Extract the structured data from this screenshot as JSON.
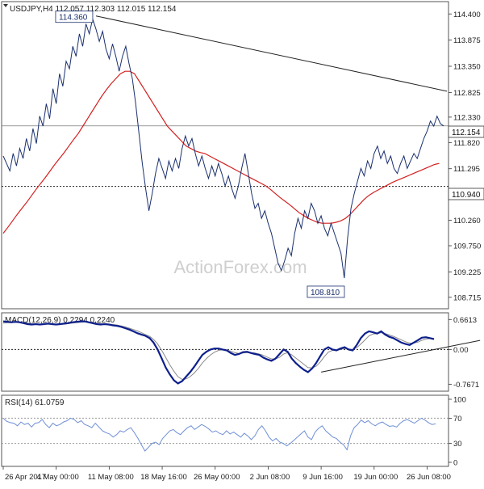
{
  "colors": {
    "price": "#1a2f6e",
    "ma": "#d42020",
    "macd_line": "#0d1f8c",
    "signal_line": "#8a8a8a",
    "rsi_line": "#6f8fd6",
    "trendline": "#222222",
    "grid_dash": "#9a9a9a",
    "label_text": "#1a2f6e",
    "axis_text": "#222222"
  },
  "chart_data": [
    {
      "type": "line",
      "panel": "price",
      "title": "USDJPY,H4 112.057 112.303 112.015 112.154",
      "watermark": "ActionForex.com",
      "ylim": [
        108.55,
        114.55
      ],
      "y_ticks": [
        "114.400",
        "113.875",
        "113.350",
        "112.825",
        "112.330",
        "111.820",
        "111.295",
        "110.785",
        "110.260",
        "109.750",
        "109.225",
        "108.715"
      ],
      "last_price_label": "112.154",
      "last_price": 112.154,
      "support_label": "110.940",
      "support_level": 110.94,
      "high_label": "114.360",
      "high": {
        "x": 28,
        "y": 114.36
      },
      "low_label": "108.810",
      "low": {
        "x": 104,
        "y": 108.81
      },
      "trendline": [
        {
          "x": 28,
          "y": 114.36
        },
        {
          "x": 134,
          "y": 112.85
        }
      ],
      "series": [
        {
          "values": [
            111.55,
            111.4,
            111.25,
            111.6,
            111.35,
            111.7,
            111.5,
            111.9,
            111.65,
            112.1,
            111.8,
            112.35,
            112.15,
            112.6,
            112.3,
            112.9,
            112.6,
            113.2,
            112.95,
            113.45,
            113.3,
            113.75,
            113.55,
            114.0,
            113.75,
            114.2,
            114.0,
            114.3,
            114.1,
            113.85,
            114.05,
            113.7,
            113.5,
            113.8,
            113.55,
            113.25,
            113.55,
            113.75,
            113.4,
            113.1,
            112.6,
            112.0,
            111.4,
            110.9,
            110.45,
            110.8,
            111.2,
            111.5,
            111.3,
            111.1,
            111.45,
            111.25,
            111.5,
            111.3,
            111.7,
            111.95,
            111.75,
            111.9,
            111.6,
            111.35,
            111.55,
            111.3,
            111.1,
            111.35,
            111.15,
            111.4,
            111.2,
            110.95,
            111.15,
            110.9,
            110.7,
            110.95,
            111.3,
            111.6,
            111.2,
            110.8,
            110.5,
            110.6,
            110.3,
            110.45,
            110.2,
            110.0,
            109.7,
            109.4,
            109.25,
            109.45,
            109.7,
            109.55,
            110.0,
            110.3,
            110.1,
            110.45,
            110.3,
            110.6,
            110.45,
            110.2,
            110.35,
            110.1,
            109.95,
            110.2,
            110.0,
            109.8,
            109.6,
            109.1,
            109.9,
            110.5,
            110.8,
            111.05,
            111.3,
            111.15,
            111.45,
            111.3,
            111.6,
            111.75,
            111.5,
            111.65,
            111.4,
            111.55,
            111.3,
            111.2,
            111.4,
            111.55,
            111.3,
            111.45,
            111.6,
            111.5,
            111.7,
            111.9,
            112.05,
            112.25,
            112.15,
            112.35,
            112.2,
            112.154
          ]
        },
        {
          "name": "MA",
          "values": [
            110.0,
            110.12,
            110.25,
            110.38,
            110.5,
            110.62,
            110.75,
            110.88,
            111.0,
            111.12,
            111.25,
            111.38,
            111.5,
            111.62,
            111.75,
            111.88,
            112.0,
            112.15,
            112.3,
            112.45,
            112.6,
            112.75,
            112.88,
            113.0,
            113.1,
            113.2,
            113.25,
            113.25,
            113.2,
            113.05,
            112.9,
            112.75,
            112.6,
            112.45,
            112.3,
            112.15,
            112.05,
            111.95,
            111.85,
            111.75,
            111.7,
            111.65,
            111.62,
            111.6,
            111.55,
            111.5,
            111.45,
            111.4,
            111.35,
            111.3,
            111.25,
            111.2,
            111.15,
            111.1,
            111.05,
            111.0,
            110.95,
            110.88,
            110.8,
            110.72,
            110.65,
            110.58,
            110.5,
            110.42,
            110.36,
            110.3,
            110.26,
            110.22,
            110.2,
            110.2,
            110.2,
            110.22,
            110.25,
            110.3,
            110.38,
            110.48,
            110.58,
            110.68,
            110.76,
            110.82,
            110.87,
            110.92,
            110.97,
            111.02,
            111.06,
            111.1,
            111.14,
            111.18,
            111.22,
            111.26,
            111.3,
            111.34,
            111.38,
            111.4
          ]
        }
      ]
    },
    {
      "type": "line",
      "panel": "macd",
      "title": "MACD(12,26,9) 0.2294 0.2240",
      "ylim": [
        -0.85,
        0.72
      ],
      "y_ticks": [
        "0.6613",
        "0.00",
        "-0.7671"
      ],
      "zero_level": 0,
      "trendline": [
        {
          "x": 96,
          "y": -0.5
        },
        {
          "x": 144,
          "y": 0.2
        }
      ],
      "series": [
        {
          "values": [
            0.62,
            0.61,
            0.6,
            0.61,
            0.6,
            0.58,
            0.56,
            0.55,
            0.56,
            0.55,
            0.56,
            0.57,
            0.56,
            0.55,
            0.56,
            0.57,
            0.58,
            0.6,
            0.61,
            0.62,
            0.62,
            0.6,
            0.58,
            0.56,
            0.55,
            0.56,
            0.55,
            0.53,
            0.52,
            0.5,
            0.47,
            0.44,
            0.4,
            0.36,
            0.33,
            0.3,
            0.25,
            0.15,
            0.0,
            -0.2,
            -0.4,
            -0.55,
            -0.68,
            -0.75,
            -0.7,
            -0.6,
            -0.5,
            -0.38,
            -0.25,
            -0.12,
            -0.05,
            0.0,
            0.02,
            0.02,
            0.0,
            -0.02,
            -0.08,
            -0.12,
            -0.1,
            -0.06,
            -0.05,
            -0.08,
            -0.1,
            -0.12,
            -0.18,
            -0.22,
            -0.25,
            -0.2,
            -0.1,
            0.0,
            -0.05,
            -0.2,
            -0.3,
            -0.38,
            -0.45,
            -0.5,
            -0.42,
            -0.3,
            -0.15,
            0.0,
            0.05,
            0.0,
            -0.02,
            0.02,
            0.05,
            0.0,
            -0.02,
            0.1,
            0.25,
            0.35,
            0.4,
            0.38,
            0.35,
            0.4,
            0.33,
            0.28,
            0.25,
            0.2,
            0.15,
            0.12,
            0.1,
            0.15,
            0.2,
            0.26,
            0.27,
            0.25,
            0.23
          ]
        },
        {
          "name": "Signal",
          "values": [
            0.58,
            0.59,
            0.59,
            0.6,
            0.6,
            0.59,
            0.58,
            0.57,
            0.56,
            0.56,
            0.56,
            0.56,
            0.56,
            0.56,
            0.56,
            0.56,
            0.57,
            0.58,
            0.59,
            0.6,
            0.61,
            0.61,
            0.6,
            0.58,
            0.57,
            0.56,
            0.56,
            0.55,
            0.54,
            0.52,
            0.5,
            0.47,
            0.44,
            0.41,
            0.37,
            0.33,
            0.29,
            0.22,
            0.12,
            -0.02,
            -0.18,
            -0.34,
            -0.48,
            -0.6,
            -0.66,
            -0.65,
            -0.6,
            -0.52,
            -0.42,
            -0.3,
            -0.2,
            -0.12,
            -0.06,
            -0.02,
            -0.01,
            -0.01,
            -0.04,
            -0.07,
            -0.09,
            -0.08,
            -0.07,
            -0.07,
            -0.08,
            -0.1,
            -0.13,
            -0.17,
            -0.21,
            -0.21,
            -0.17,
            -0.1,
            -0.07,
            -0.12,
            -0.19,
            -0.26,
            -0.33,
            -0.4,
            -0.41,
            -0.37,
            -0.28,
            -0.16,
            -0.06,
            -0.02,
            -0.02,
            0.0,
            0.02,
            0.01,
            0.0,
            0.04,
            0.12,
            0.21,
            0.3,
            0.34,
            0.35,
            0.37,
            0.35,
            0.32,
            0.29,
            0.25,
            0.21,
            0.17,
            0.14,
            0.14,
            0.16,
            0.2,
            0.23,
            0.24,
            0.224
          ]
        }
      ]
    },
    {
      "type": "line",
      "panel": "rsi",
      "title": "RSI(14) 61.0759",
      "ylim": [
        0,
        100
      ],
      "y_ticks": [
        "100",
        "70",
        "30",
        "0"
      ],
      "dashed_levels": [
        70,
        30
      ],
      "series": [
        {
          "values": [
            70,
            65,
            63,
            62,
            58,
            64,
            60,
            62,
            56,
            62,
            63,
            68,
            60,
            55,
            62,
            58,
            60,
            64,
            66,
            70,
            68,
            63,
            66,
            60,
            58,
            55,
            62,
            56,
            50,
            47,
            45,
            40,
            44,
            50,
            48,
            52,
            55,
            47,
            38,
            28,
            18,
            24,
            30,
            32,
            28,
            38,
            44,
            50,
            52,
            47,
            44,
            50,
            55,
            58,
            52,
            56,
            60,
            57,
            53,
            48,
            50,
            46,
            44,
            50,
            45,
            48,
            44,
            40,
            46,
            42,
            36,
            42,
            52,
            58,
            50,
            40,
            34,
            38,
            32,
            30,
            26,
            30,
            35,
            40,
            45,
            50,
            40,
            36,
            48,
            54,
            58,
            50,
            45,
            40,
            38,
            32,
            28,
            20,
            42,
            55,
            60,
            67,
            63,
            66,
            61,
            58,
            62,
            64,
            60,
            57,
            58,
            56,
            62,
            66,
            68,
            65,
            62,
            66,
            70,
            67,
            63,
            60,
            61
          ]
        }
      ]
    }
  ],
  "x_axis": {
    "tick_labels": [
      "26 Apr 2017",
      "4 May 00:00",
      "11 May 08:00",
      "18 May 16:00",
      "26 May 00:00",
      "2 Jun 08:00",
      "9 Jun 16:00",
      "19 Jun 00:00",
      "26 Jun 08:00"
    ],
    "tick_bars": [
      0,
      16,
      32,
      48,
      64,
      80,
      96,
      112,
      128
    ]
  }
}
